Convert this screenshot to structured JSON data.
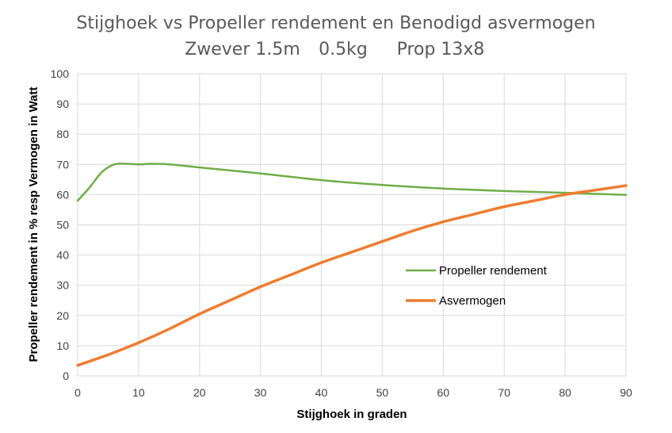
{
  "chart_data": {
    "type": "line",
    "title": "Stijghoek vs Propeller rendement en Benodigd asvermogen",
    "subtitle": [
      "Zwever 1.5m",
      "0.5kg",
      "Prop 13x8"
    ],
    "xlabel": "Stijghoek in graden",
    "ylabel": "Propeller rendement in % resp Vermogen in Watt",
    "xlim": [
      0,
      90
    ],
    "ylim": [
      0,
      100
    ],
    "x_ticks": [
      0,
      10,
      20,
      30,
      40,
      50,
      60,
      70,
      80,
      90
    ],
    "y_ticks": [
      0,
      10,
      20,
      30,
      40,
      50,
      60,
      70,
      80,
      90,
      100
    ],
    "grid": true,
    "legend_position": "center-right",
    "series": [
      {
        "name": "Propeller rendement",
        "color": "#70AD47",
        "x": [
          0,
          2,
          4,
          6,
          8,
          10,
          12,
          15,
          20,
          30,
          40,
          50,
          60,
          70,
          80,
          90
        ],
        "y": [
          58,
          62.5,
          67.5,
          70,
          70.2,
          70,
          70.2,
          70,
          69,
          67,
          64.8,
          63.2,
          62,
          61.2,
          60.6,
          59.9
        ]
      },
      {
        "name": "Asvermogen",
        "color": "#ED7D31",
        "x": [
          0,
          5,
          10,
          15,
          20,
          25,
          30,
          35,
          40,
          45,
          50,
          55,
          60,
          65,
          70,
          75,
          80,
          85,
          90
        ],
        "y": [
          3.5,
          7,
          11,
          15.5,
          20.5,
          25,
          29.5,
          33.5,
          37.5,
          41,
          44.5,
          48,
          51,
          53.5,
          56,
          58,
          60,
          61.5,
          63
        ]
      }
    ]
  }
}
